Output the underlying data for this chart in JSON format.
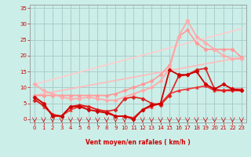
{
  "xlabel": "Vent moyen/en rafales ( km/h )",
  "xlim": [
    -0.5,
    23.5
  ],
  "ylim": [
    -1,
    36
  ],
  "yticks": [
    0,
    5,
    10,
    15,
    20,
    25,
    30,
    35
  ],
  "xticks": [
    0,
    1,
    2,
    3,
    4,
    5,
    6,
    7,
    8,
    9,
    10,
    11,
    12,
    13,
    14,
    15,
    16,
    17,
    18,
    19,
    20,
    21,
    22,
    23
  ],
  "bg_color": "#cceee8",
  "grid_color": "#aacccc",
  "tick_color": "#cc0000",
  "label_color": "#cc0000",
  "series": [
    {
      "x": [
        0,
        23
      ],
      "y": [
        7.5,
        19.5
      ],
      "color": "#ffbbbb",
      "marker": null,
      "lw": 1.2
    },
    {
      "x": [
        0,
        23
      ],
      "y": [
        11,
        28.5
      ],
      "color": "#ffcccc",
      "marker": null,
      "lw": 1.2
    },
    {
      "x": [
        0,
        1,
        2,
        3,
        4,
        5,
        6,
        7,
        8,
        9,
        10,
        11,
        12,
        13,
        14,
        15,
        16,
        17,
        18,
        19,
        20,
        21,
        22,
        23
      ],
      "y": [
        7.5,
        7.5,
        7.5,
        7.5,
        7.5,
        7.5,
        7.5,
        7.5,
        7.5,
        8,
        9,
        10,
        11,
        12,
        14,
        17,
        26,
        28,
        24,
        22,
        22,
        22,
        22,
        19.5
      ],
      "color": "#ff9999",
      "marker": "D",
      "markersize": 2.5,
      "lw": 1.2
    },
    {
      "x": [
        0,
        1,
        2,
        3,
        4,
        5,
        6,
        7,
        8,
        9,
        10,
        11,
        12,
        13,
        14,
        15,
        16,
        17,
        18,
        19,
        20,
        21,
        22,
        23
      ],
      "y": [
        11,
        9,
        8,
        7,
        6.5,
        6.5,
        7,
        6.5,
        6,
        6,
        7,
        8,
        9,
        10,
        12,
        16,
        26,
        31,
        26,
        24,
        22,
        20,
        19,
        19
      ],
      "color": "#ffaaaa",
      "marker": "D",
      "markersize": 2.5,
      "lw": 1.3
    },
    {
      "x": [
        0,
        1,
        2,
        3,
        4,
        5,
        6,
        7,
        8,
        9,
        10,
        11,
        12,
        13,
        14,
        15,
        16,
        17,
        18,
        19,
        20,
        21,
        22,
        23
      ],
      "y": [
        6.5,
        4,
        1.5,
        1,
        3,
        4,
        4,
        3,
        2.5,
        1,
        1,
        0.5,
        3,
        4,
        5,
        8,
        9,
        9.5,
        10,
        10.5,
        9,
        9,
        9.5,
        9.5
      ],
      "color": "#ee3333",
      "marker": "^",
      "markersize": 2.5,
      "lw": 1.2
    },
    {
      "x": [
        0,
        1,
        2,
        3,
        4,
        5,
        6,
        7,
        8,
        9,
        10,
        11,
        12,
        13,
        14,
        15,
        16,
        17,
        18,
        19,
        20,
        21,
        22,
        23
      ],
      "y": [
        6,
        4.5,
        1.5,
        1,
        4,
        4.5,
        4,
        3,
        2.5,
        3,
        6.5,
        7,
        6.5,
        5,
        4.5,
        7.5,
        13.5,
        14,
        15.5,
        16,
        9.5,
        9,
        9,
        9
      ],
      "color": "#dd2222",
      "marker": "D",
      "markersize": 2.5,
      "lw": 1.2
    },
    {
      "x": [
        0,
        1,
        2,
        3,
        4,
        5,
        6,
        7,
        8,
        9,
        10,
        11,
        12,
        13,
        14,
        15,
        16,
        17,
        18,
        19,
        20,
        21,
        22,
        23
      ],
      "y": [
        7,
        5,
        1,
        1,
        4,
        4,
        3,
        2.5,
        2,
        1,
        1,
        0,
        3,
        4.5,
        5,
        15.5,
        14,
        14,
        15,
        11,
        9.5,
        11,
        9.5,
        9
      ],
      "color": "#cc0000",
      "marker": "D",
      "markersize": 2.5,
      "lw": 1.3
    }
  ]
}
